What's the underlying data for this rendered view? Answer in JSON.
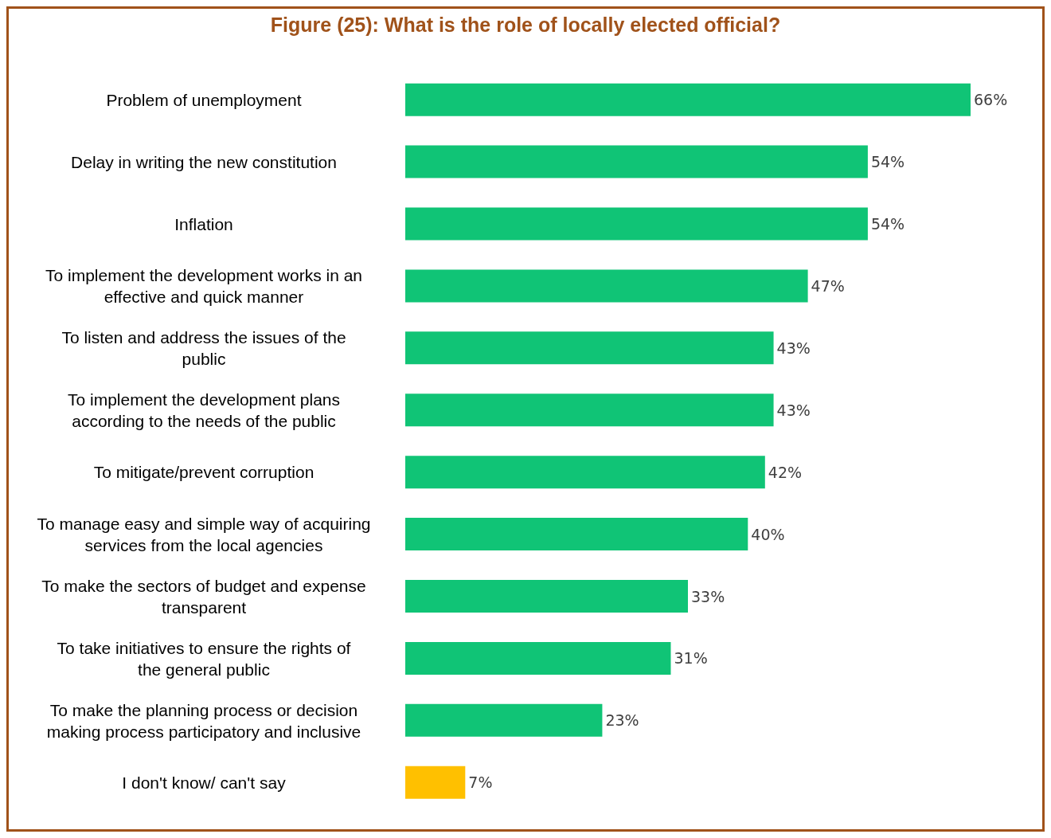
{
  "chart_data": {
    "type": "bar",
    "orientation": "horizontal",
    "title": "Figure (25): What is the role of locally elected official?",
    "categories": [
      "Problem of unemployment",
      "Delay in writing the new constitution",
      "Inflation",
      "To implement the development works in an effective and quick manner",
      "To listen and address the issues of the public",
      "To implement the development plans according to the needs of the public",
      "To mitigate/prevent corruption",
      "To manage easy and simple way of acquiring services from the local agencies",
      "To make the sectors of budget and expense transparent",
      "To take initiatives to ensure the rights of the general public",
      "To make the planning process or decision making process participatory and inclusive",
      "I don't know/ can't say"
    ],
    "values": [
      66,
      54,
      54,
      47,
      43,
      43,
      42,
      40,
      33,
      31,
      23,
      7
    ],
    "value_labels": [
      "66%",
      "54%",
      "54%",
      "47%",
      "43%",
      "43%",
      "42%",
      "40%",
      "33%",
      "31%",
      "23%",
      "7%"
    ],
    "colors": [
      "#10c476",
      "#10c476",
      "#10c476",
      "#10c476",
      "#10c476",
      "#10c476",
      "#10c476",
      "#10c476",
      "#10c476",
      "#10c476",
      "#10c476",
      "#ffc000"
    ],
    "grid": false,
    "legend": false
  }
}
